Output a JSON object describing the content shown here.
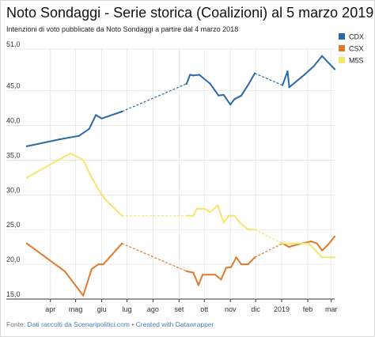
{
  "title": "Noto Sondaggi - Serie storica (Coalizioni) al 5 marzo 2019",
  "subtitle": "Intenzioni di voto pubblicate da Noto Sondaggi a partire dal 4 marzo 2018",
  "footer": {
    "prefix": "Fonte: ",
    "source_link": "Dati raccolti da Scenaripolitici.com",
    "separator": " • ",
    "credit_link": "Created with Datawrapper"
  },
  "chart_data": {
    "type": "line",
    "title": "Noto Sondaggi - Serie storica (Coalizioni) al 5 marzo 2019",
    "x_axis": {
      "type": "time",
      "range": [
        "2018-03-04",
        "2019-03-05"
      ],
      "ticks": [
        {
          "date": "2018-04-01",
          "label": "apr"
        },
        {
          "date": "2018-05-01",
          "label": "mag"
        },
        {
          "date": "2018-06-01",
          "label": "giu"
        },
        {
          "date": "2018-07-01",
          "label": "lug"
        },
        {
          "date": "2018-08-01",
          "label": "ago"
        },
        {
          "date": "2018-09-01",
          "label": "set"
        },
        {
          "date": "2018-10-01",
          "label": "ott"
        },
        {
          "date": "2018-11-01",
          "label": "nov"
        },
        {
          "date": "2018-12-01",
          "label": "dic"
        },
        {
          "date": "2019-01-01",
          "label": "2019"
        },
        {
          "date": "2019-02-01",
          "label": "feb"
        },
        {
          "date": "2019-03-01",
          "label": "mar"
        }
      ]
    },
    "y_axis": {
      "range": [
        15,
        51
      ],
      "ticks": [
        {
          "value": 15,
          "label": "15,0"
        },
        {
          "value": 20,
          "label": "20,0"
        },
        {
          "value": 25,
          "label": "25,0"
        },
        {
          "value": 30,
          "label": "30,0"
        },
        {
          "value": 35,
          "label": "35,0"
        },
        {
          "value": 40,
          "label": "40,0"
        },
        {
          "value": 45,
          "label": "45,0"
        },
        {
          "value": 51,
          "label": "51,0"
        }
      ],
      "grid": true
    },
    "gap_style": "dashed",
    "legend": {
      "placement": "right"
    },
    "series": [
      {
        "name": "CDX",
        "color": "#2b6aa8",
        "segments": [
          [
            [
              "2018-03-04",
              37.0
            ],
            [
              "2018-04-12",
              38.0
            ],
            [
              "2018-05-05",
              38.5
            ],
            [
              "2018-05-17",
              39.5
            ],
            [
              "2018-05-25",
              41.5
            ],
            [
              "2018-06-01",
              41.0
            ],
            [
              "2018-06-25",
              42.0
            ]
          ],
          [
            [
              "2018-09-10",
              46.0
            ],
            [
              "2018-09-14",
              47.3
            ],
            [
              "2018-09-18",
              47.2
            ],
            [
              "2018-09-25",
              47.3
            ],
            [
              "2018-10-08",
              46.0
            ],
            [
              "2018-10-18",
              44.3
            ],
            [
              "2018-10-24",
              44.4
            ],
            [
              "2018-11-01",
              43.0
            ],
            [
              "2018-11-06",
              43.8
            ],
            [
              "2018-11-14",
              44.3
            ],
            [
              "2018-11-22",
              45.8
            ],
            [
              "2018-11-30",
              47.5
            ]
          ],
          [
            [
              "2019-01-02",
              45.8
            ],
            [
              "2019-01-08",
              47.8
            ],
            [
              "2019-01-10",
              45.5
            ],
            [
              "2019-01-28",
              47.3
            ],
            [
              "2019-02-08",
              48.5
            ],
            [
              "2019-02-18",
              50.0
            ],
            [
              "2019-03-05",
              48.1
            ]
          ]
        ]
      },
      {
        "name": "CSX",
        "color": "#e07a2c",
        "segments": [
          [
            [
              "2018-03-04",
              23.0
            ],
            [
              "2018-04-18",
              19.0
            ],
            [
              "2018-05-10",
              15.5
            ],
            [
              "2018-05-20",
              19.3
            ],
            [
              "2018-05-28",
              20.0
            ],
            [
              "2018-06-03",
              20.0
            ],
            [
              "2018-06-25",
              23.0
            ]
          ],
          [
            [
              "2018-09-10",
              19.0
            ],
            [
              "2018-09-18",
              18.8
            ],
            [
              "2018-09-24",
              17.0
            ],
            [
              "2018-09-29",
              18.5
            ],
            [
              "2018-10-14",
              18.5
            ],
            [
              "2018-10-21",
              17.8
            ],
            [
              "2018-10-27",
              19.5
            ],
            [
              "2018-11-02",
              19.6
            ],
            [
              "2018-11-08",
              21.0
            ],
            [
              "2018-11-14",
              20.0
            ],
            [
              "2018-11-22",
              20.0
            ],
            [
              "2018-11-30",
              21.0
            ]
          ],
          [
            [
              "2019-01-02",
              23.0
            ],
            [
              "2019-01-10",
              22.5
            ],
            [
              "2019-01-18",
              22.8
            ],
            [
              "2019-02-05",
              23.3
            ],
            [
              "2019-02-12",
              23.0
            ],
            [
              "2019-02-18",
              22.0
            ],
            [
              "2019-02-25",
              22.8
            ],
            [
              "2019-03-05",
              24.0
            ]
          ]
        ]
      },
      {
        "name": "M5S",
        "color": "#f5e56b",
        "segments": [
          [
            [
              "2018-03-04",
              32.5
            ],
            [
              "2018-04-25",
              36.0
            ],
            [
              "2018-05-10",
              35.0
            ],
            [
              "2018-05-20",
              32.5
            ],
            [
              "2018-06-01",
              30.0
            ],
            [
              "2018-06-08",
              29.0
            ],
            [
              "2018-06-25",
              27.0
            ]
          ],
          [
            [
              "2018-09-10",
              27.0
            ],
            [
              "2018-09-18",
              27.0
            ],
            [
              "2018-09-22",
              28.0
            ],
            [
              "2018-10-02",
              28.0
            ],
            [
              "2018-10-08",
              27.5
            ],
            [
              "2018-10-17",
              28.5
            ],
            [
              "2018-10-24",
              26.0
            ],
            [
              "2018-10-30",
              27.0
            ],
            [
              "2018-11-06",
              27.0
            ],
            [
              "2018-11-12",
              26.0
            ],
            [
              "2018-11-22",
              25.0
            ],
            [
              "2018-11-30",
              25.0
            ]
          ],
          [
            [
              "2019-01-02",
              23.0
            ],
            [
              "2019-01-12",
              23.0
            ],
            [
              "2019-02-02",
              23.0
            ],
            [
              "2019-02-18",
              21.0
            ],
            [
              "2019-03-05",
              21.0
            ]
          ]
        ]
      }
    ]
  }
}
